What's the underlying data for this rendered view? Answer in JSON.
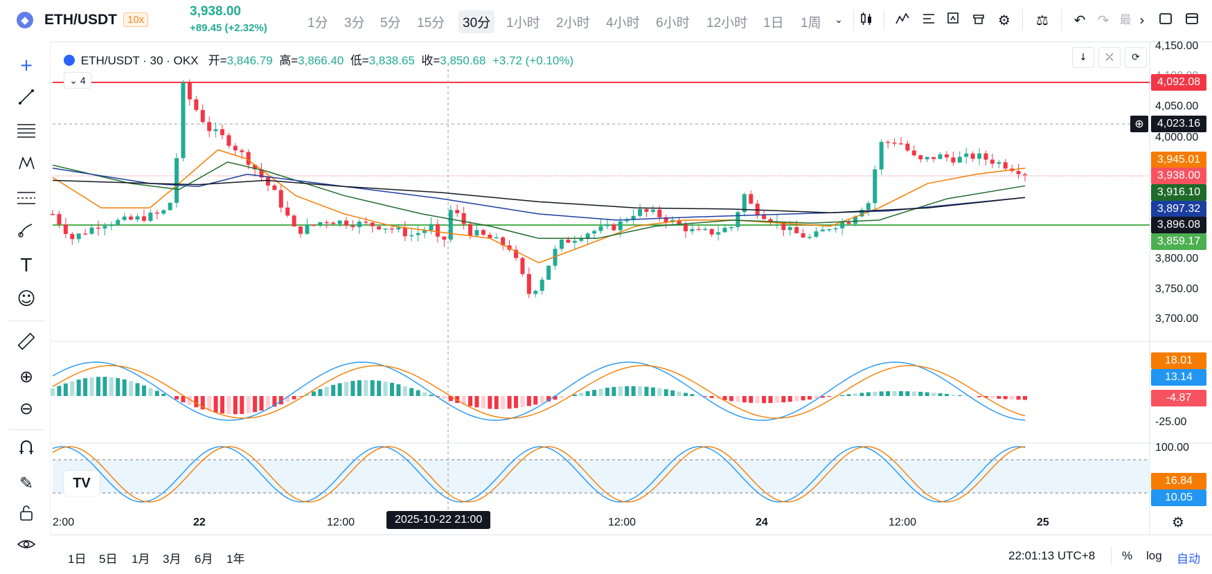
{
  "header": {
    "symbol_icon": "ethereum-icon",
    "symbol": "ETH/USDT",
    "leverage": "10x",
    "price": "3,938.00",
    "change": "+89.45 (+2.32%)",
    "timeframes": [
      "1分",
      "3分",
      "5分",
      "15分",
      "30分",
      "1小时",
      "2小时",
      "4小时",
      "6小时",
      "12小时",
      "1日",
      "1周"
    ],
    "active_timeframe": "30分",
    "toolbar_icons": [
      "chevron-down-icon",
      "candles-icon",
      "indicators-icon",
      "template-icon",
      "alert-icon",
      "replay-icon",
      "settings-icon",
      "balance-icon",
      "undo-icon",
      "redo-icon",
      "more-icon",
      "fullscreen-icon",
      "close-icon"
    ],
    "more_text": "最"
  },
  "legend": {
    "title": "ETH/USDT · 30 · OKX",
    "open_label": "开=",
    "open": "3,846.79",
    "high_label": "高=",
    "high": "3,866.40",
    "low_label": "低=",
    "low": "3,838.65",
    "close_label": "收=",
    "close": "3,850.68",
    "change": "+3.72 (+0.10%)",
    "indicators_count": "4"
  },
  "price_axis": {
    "ticks": [
      "4,150.00",
      "4,100.00",
      "4,050.00",
      "4,000.00",
      "3,800.00",
      "3,750.00",
      "3,700.00"
    ],
    "badges": [
      {
        "value": "4,092.08",
        "color": "#f23645"
      },
      {
        "value": "4,023.16",
        "color": "#131722"
      },
      {
        "value": "3,945.01",
        "color": "#f57c00"
      },
      {
        "value": "3,938.00",
        "color": "#f7525f"
      },
      {
        "value": "3,916.10",
        "color": "#1e6b2a"
      },
      {
        "value": "3,897.32",
        "color": "#1b3fa0"
      },
      {
        "value": "3,896.08",
        "color": "#131722"
      },
      {
        "value": "3,859.17",
        "color": "#4caf50"
      }
    ]
  },
  "macd": {
    "badges": [
      {
        "value": "18.01",
        "color": "#f57c00"
      },
      {
        "value": "13.14",
        "color": "#2196f3"
      },
      {
        "value": "-4.87",
        "color": "#f7525f"
      }
    ],
    "tick": "-25.00"
  },
  "stoch": {
    "tick": "100.00",
    "badges": [
      {
        "value": "16.84",
        "color": "#f57c00"
      },
      {
        "value": "10.05",
        "color": "#2196f3"
      }
    ]
  },
  "time_axis": {
    "labels": [
      "2:00",
      "22",
      "12:00",
      "12:00",
      "24",
      "12:00",
      "25"
    ],
    "crosshair": "2025-10-22  21:00"
  },
  "bottom": {
    "ranges": [
      "1日",
      "5日",
      "1月",
      "3月",
      "6月",
      "1年"
    ],
    "clock": "22:01:13 UTC+8",
    "percent": "%",
    "log": "log",
    "auto": "自动"
  },
  "watermark": "TV"
}
